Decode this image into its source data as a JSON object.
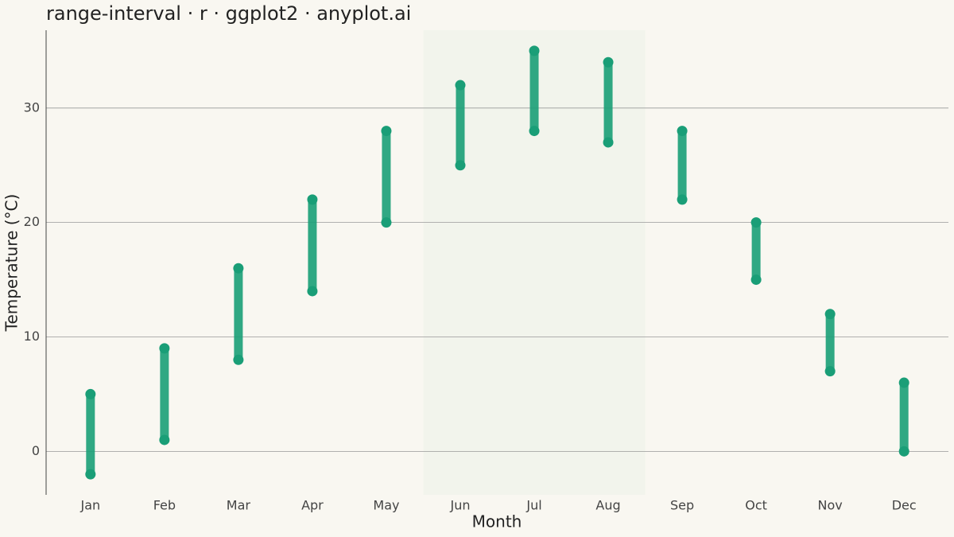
{
  "chart_data": {
    "type": "range",
    "title": "range-interval · r · ggplot2 · anyplot.ai",
    "x_label": "Month",
    "y_label": "Temperature (°C)",
    "categories": [
      "Jan",
      "Feb",
      "Mar",
      "Apr",
      "May",
      "Jun",
      "Jul",
      "Aug",
      "Sep",
      "Oct",
      "Nov",
      "Dec"
    ],
    "low": [
      -2,
      1,
      8,
      14,
      20,
      25,
      28,
      27,
      22,
      15,
      7,
      0
    ],
    "high": [
      5,
      9,
      16,
      22,
      28,
      32,
      35,
      34,
      28,
      20,
      12,
      6
    ],
    "color": "#1a9e77",
    "highlight": {
      "from": "Jun",
      "to": "Aug",
      "color": "#f2f4ec"
    },
    "ylim": [
      -3.8,
      36.8
    ],
    "yticks": [
      0,
      10,
      20,
      30
    ],
    "grid": true
  }
}
